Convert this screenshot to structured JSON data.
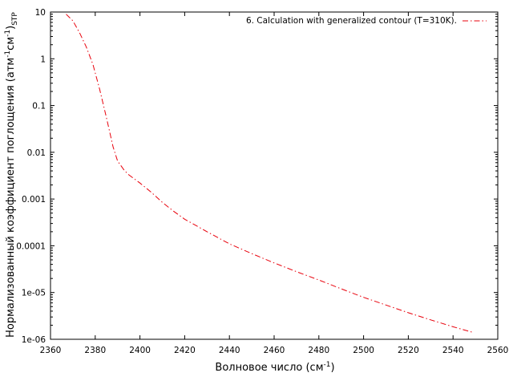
{
  "chart_data": {
    "type": "line",
    "xlabel": {
      "text": "Волновое число (см",
      "sup": "-1",
      "close": ")"
    },
    "ylabel": {
      "text": "Нормализованный коэффициент поглощения (атм",
      "sup1": "-1",
      "mid": "см",
      "sup2": "-1",
      "close": ")",
      "sub": "STP"
    },
    "xlim": [
      2360,
      2560
    ],
    "ylim": [
      1e-06,
      10
    ],
    "yscale": "log",
    "grid": false,
    "legend_position": "top-right",
    "x_ticks": [
      "2360",
      "2380",
      "2400",
      "2420",
      "2440",
      "2460",
      "2480",
      "2500",
      "2520",
      "2540",
      "2560"
    ],
    "y_ticks": [
      "1e-06",
      "1e-05",
      "0.0001",
      "0.001",
      "0.01",
      "0.1",
      "1",
      "10"
    ],
    "series": [
      {
        "name": "6. Calculation with generalized contour (T=310K).",
        "color": "#e8000b",
        "line_style": "dash-dot",
        "x": [
          2367,
          2370,
          2373,
          2376,
          2379,
          2382,
          2385,
          2388,
          2390,
          2393,
          2395,
          2400,
          2405,
          2410,
          2415,
          2420,
          2430,
          2440,
          2450,
          2460,
          2470,
          2480,
          2490,
          2500,
          2510,
          2520,
          2530,
          2540,
          2549
        ],
        "y": [
          9,
          6.5,
          3.6,
          1.8,
          0.75,
          0.22,
          0.055,
          0.013,
          0.0065,
          0.0041,
          0.0033,
          0.0022,
          0.0014,
          0.00085,
          0.00055,
          0.00037,
          0.0002,
          0.00011,
          6.8e-05,
          4.3e-05,
          2.8e-05,
          1.85e-05,
          1.2e-05,
          7.9e-06,
          5.4e-06,
          3.7e-06,
          2.6e-06,
          1.85e-06,
          1.4e-06
        ]
      }
    ]
  }
}
